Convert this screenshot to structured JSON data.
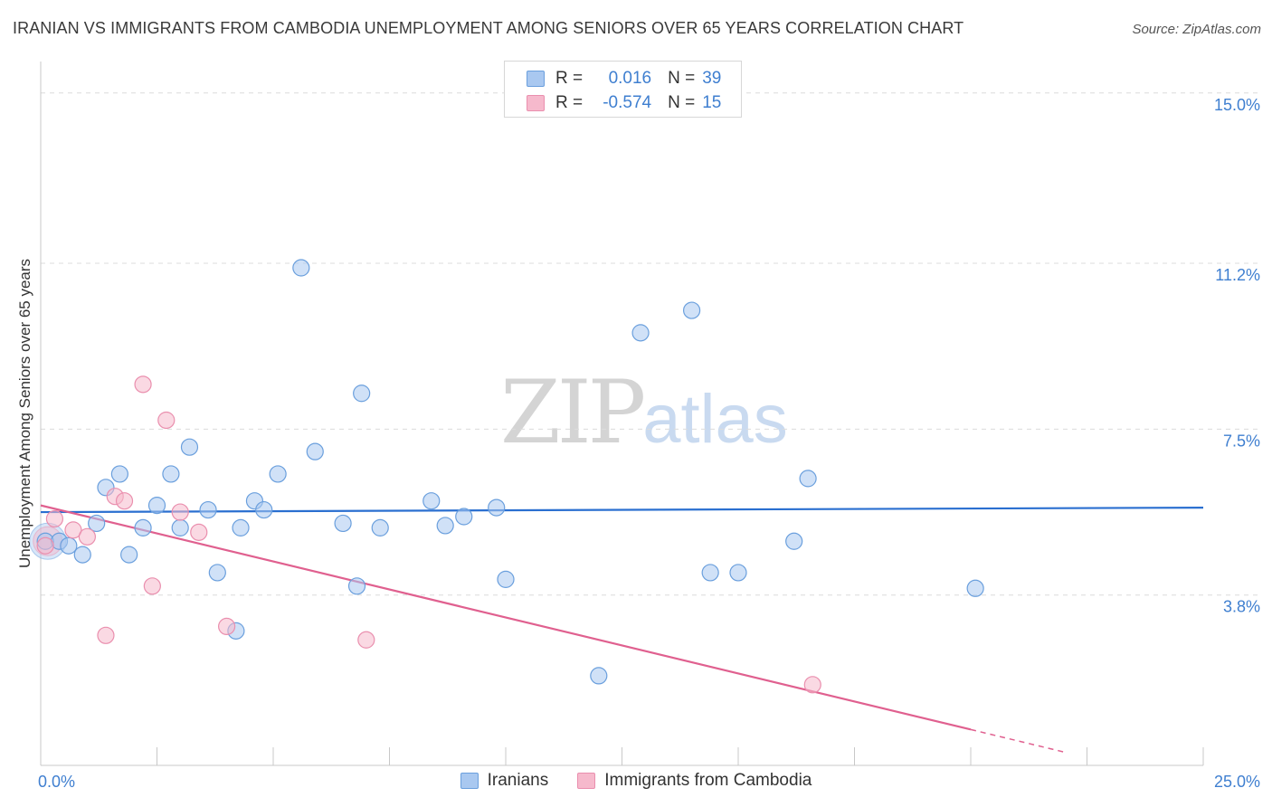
{
  "header": {
    "title": "IRANIAN VS IMMIGRANTS FROM CAMBODIA UNEMPLOYMENT AMONG SENIORS OVER 65 YEARS CORRELATION CHART",
    "source": "Source: ZipAtlas.com"
  },
  "watermark": {
    "zip": "ZIP",
    "atlas": "atlas"
  },
  "legend": {
    "rows": [
      {
        "r_label": "R =",
        "r_value": "0.016",
        "n_label": "N =",
        "n_value": "39",
        "color": "#a9c8f0"
      },
      {
        "r_label": "R =",
        "r_value": "-0.574",
        "n_label": "N =",
        "n_value": "15",
        "color": "#f6b9cc"
      }
    ]
  },
  "bottom_legend": [
    "Iranians",
    "Immigrants from Cambodia"
  ],
  "chart_data": {
    "type": "scatter",
    "title": "IRANIAN VS IMMIGRANTS FROM CAMBODIA UNEMPLOYMENT AMONG SENIORS OVER 65 YEARS CORRELATION CHART",
    "xlabel": "",
    "ylabel": "Unemployment Among Seniors over 65 years",
    "xlim": [
      0,
      25
    ],
    "ylim": [
      0,
      15.5
    ],
    "x_tick_labels": [
      "0.0%",
      "25.0%"
    ],
    "y_tick_values": [
      3.8,
      7.5,
      11.2,
      15.0
    ],
    "y_tick_labels": [
      "3.8%",
      "7.5%",
      "11.2%",
      "15.0%"
    ],
    "grid": true,
    "legend_position": "top-center",
    "series": [
      {
        "name": "Iranians",
        "color": "#a9c8f0",
        "stroke": "#6a9fdd",
        "trend": {
          "x": [
            0,
            25
          ],
          "y": [
            5.65,
            5.75
          ],
          "color": "#2a6fd0"
        },
        "points": [
          {
            "x": 0.1,
            "y": 5.0
          },
          {
            "x": 0.4,
            "y": 5.0
          },
          {
            "x": 0.6,
            "y": 4.9
          },
          {
            "x": 0.9,
            "y": 4.7
          },
          {
            "x": 1.2,
            "y": 5.4
          },
          {
            "x": 1.4,
            "y": 6.2
          },
          {
            "x": 1.7,
            "y": 6.5
          },
          {
            "x": 1.9,
            "y": 4.7
          },
          {
            "x": 2.2,
            "y": 5.3
          },
          {
            "x": 2.5,
            "y": 5.8
          },
          {
            "x": 2.8,
            "y": 6.5
          },
          {
            "x": 3.0,
            "y": 5.3
          },
          {
            "x": 3.2,
            "y": 7.1
          },
          {
            "x": 3.6,
            "y": 5.7
          },
          {
            "x": 3.8,
            "y": 4.3
          },
          {
            "x": 4.2,
            "y": 3.0
          },
          {
            "x": 4.3,
            "y": 5.3
          },
          {
            "x": 4.6,
            "y": 5.9
          },
          {
            "x": 4.8,
            "y": 5.7
          },
          {
            "x": 5.1,
            "y": 6.5
          },
          {
            "x": 5.6,
            "y": 11.1
          },
          {
            "x": 5.9,
            "y": 7.0
          },
          {
            "x": 6.5,
            "y": 5.4
          },
          {
            "x": 6.8,
            "y": 4.0
          },
          {
            "x": 6.9,
            "y": 8.3
          },
          {
            "x": 7.3,
            "y": 5.3
          },
          {
            "x": 8.4,
            "y": 5.9
          },
          {
            "x": 8.7,
            "y": 5.35
          },
          {
            "x": 9.1,
            "y": 5.55
          },
          {
            "x": 9.8,
            "y": 5.75
          },
          {
            "x": 10.0,
            "y": 4.15
          },
          {
            "x": 12.0,
            "y": 2.0
          },
          {
            "x": 12.9,
            "y": 9.65
          },
          {
            "x": 14.0,
            "y": 10.15
          },
          {
            "x": 14.4,
            "y": 4.3
          },
          {
            "x": 15.0,
            "y": 4.3
          },
          {
            "x": 16.2,
            "y": 5.0
          },
          {
            "x": 16.5,
            "y": 6.4
          },
          {
            "x": 20.1,
            "y": 3.95
          }
        ]
      },
      {
        "name": "Immigrants from Cambodia",
        "color": "#f6b9cc",
        "stroke": "#ea8fae",
        "trend": {
          "x": [
            0,
            20
          ],
          "y": [
            5.8,
            0.8
          ],
          "dashed_to": [
            22.0,
            0.3
          ],
          "color": "#e0608f"
        },
        "points": [
          {
            "x": 0.3,
            "y": 5.5
          },
          {
            "x": 0.7,
            "y": 5.25
          },
          {
            "x": 1.0,
            "y": 5.1
          },
          {
            "x": 1.4,
            "y": 2.9
          },
          {
            "x": 1.6,
            "y": 6.0
          },
          {
            "x": 1.8,
            "y": 5.9
          },
          {
            "x": 2.2,
            "y": 8.5
          },
          {
            "x": 2.4,
            "y": 4.0
          },
          {
            "x": 2.7,
            "y": 7.7
          },
          {
            "x": 3.0,
            "y": 5.65
          },
          {
            "x": 3.4,
            "y": 5.2
          },
          {
            "x": 4.0,
            "y": 3.1
          },
          {
            "x": 7.0,
            "y": 2.8
          },
          {
            "x": 16.6,
            "y": 1.8
          },
          {
            "x": 0.1,
            "y": 4.9
          }
        ]
      }
    ]
  }
}
